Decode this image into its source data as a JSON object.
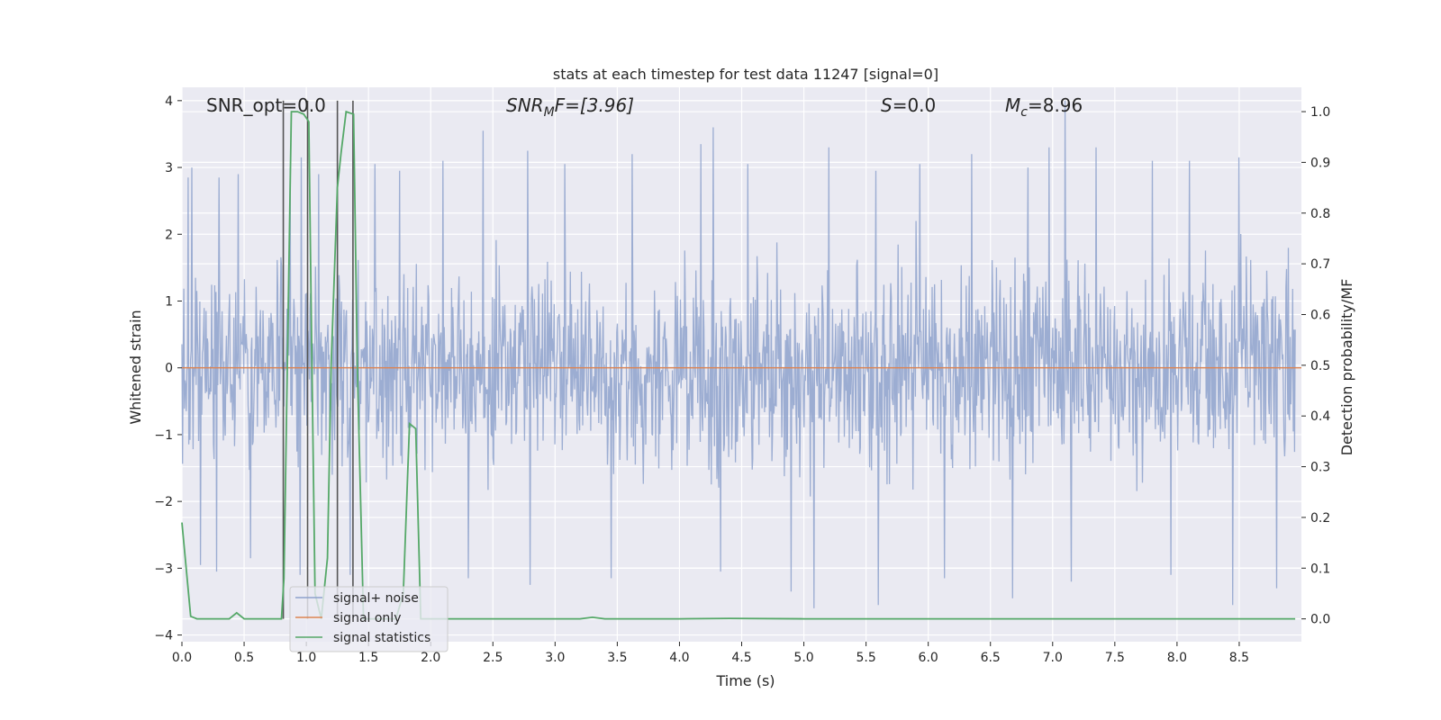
{
  "chart_data": {
    "type": "line",
    "title": "stats at each timestep for test data 11247 [signal=0]",
    "xlabel": "Time (s)",
    "ylabel_left": "Whitened strain",
    "ylabel_right": "Detection probability/MF",
    "xlim": [
      0.0,
      9.0
    ],
    "ylim_left": [
      -4.1,
      4.2
    ],
    "ylim_right": [
      -0.045,
      1.048
    ],
    "xticks": [
      "0.0",
      "0.5",
      "1.0",
      "1.5",
      "2.0",
      "2.5",
      "3.0",
      "3.5",
      "4.0",
      "4.5",
      "5.0",
      "5.5",
      "6.0",
      "6.5",
      "7.0",
      "7.5",
      "8.0",
      "8.5"
    ],
    "yticks_left": [
      4,
      3,
      2,
      1,
      0,
      -1,
      -2,
      -3,
      -4
    ],
    "yticks_left_labels": [
      "4",
      "3",
      "2",
      "1",
      "0",
      "−1",
      "−2",
      "−3",
      "−4"
    ],
    "yticks_right": [
      "1.0",
      "0.9",
      "0.8",
      "0.7",
      "0.6",
      "0.5",
      "0.4",
      "0.3",
      "0.2",
      "0.1",
      "0.0"
    ],
    "grid": true,
    "legend_position": "lower-left",
    "annotations": {
      "snr_opt": "SNR_opt=0.0",
      "snr_mf_base": "SNR",
      "snr_mf_sub": "M",
      "snr_mf_rest": "F=[3.96]",
      "s_var": "S",
      "s_rest": "=0.0",
      "mc_var": "M",
      "mc_sub": "c",
      "mc_rest": "=8.96"
    },
    "vertical_lines_x": [
      0.815,
      1.01,
      1.25,
      1.375
    ],
    "series": [
      {
        "name": "signal+ noise",
        "axis": "left",
        "color": "#8ea2cc",
        "description": "dense noise trace spanning roughly -3.6 to 4.0",
        "envelope_hi": 2.0,
        "envelope_lo": -2.0,
        "spikes": [
          [
            0.05,
            2.85
          ],
          [
            0.08,
            3.0
          ],
          [
            0.3,
            2.85
          ],
          [
            0.45,
            2.9
          ],
          [
            0.87,
            3.0
          ],
          [
            0.96,
            3.15
          ],
          [
            1.1,
            2.9
          ],
          [
            1.55,
            3.05
          ],
          [
            1.75,
            2.95
          ],
          [
            2.1,
            3.1
          ],
          [
            2.42,
            3.55
          ],
          [
            2.78,
            3.25
          ],
          [
            3.08,
            3.05
          ],
          [
            3.62,
            3.2
          ],
          [
            4.17,
            3.35
          ],
          [
            4.27,
            3.6
          ],
          [
            4.55,
            3.05
          ],
          [
            5.2,
            3.3
          ],
          [
            5.58,
            2.95
          ],
          [
            5.93,
            3.05
          ],
          [
            6.35,
            3.2
          ],
          [
            6.8,
            3.0
          ],
          [
            6.97,
            3.3
          ],
          [
            7.1,
            4.0
          ],
          [
            7.35,
            3.3
          ],
          [
            7.8,
            3.1
          ],
          [
            8.1,
            3.1
          ],
          [
            8.5,
            3.15
          ],
          [
            8.8,
            3.0
          ],
          [
            0.15,
            -2.95
          ],
          [
            0.28,
            -3.05
          ],
          [
            0.55,
            -2.85
          ],
          [
            0.95,
            -3.1
          ],
          [
            1.35,
            -3.1
          ],
          [
            2.3,
            -3.15
          ],
          [
            2.8,
            -3.25
          ],
          [
            3.45,
            -3.15
          ],
          [
            4.33,
            -3.05
          ],
          [
            4.9,
            -3.35
          ],
          [
            5.08,
            -3.6
          ],
          [
            5.6,
            -3.55
          ],
          [
            6.13,
            -3.15
          ],
          [
            6.68,
            -3.45
          ],
          [
            7.15,
            -3.2
          ],
          [
            7.95,
            -3.1
          ],
          [
            8.45,
            -3.55
          ],
          [
            8.8,
            -3.3
          ]
        ]
      },
      {
        "name": "signal only",
        "axis": "left",
        "color": "#dd8452",
        "x": [
          0.0,
          9.0
        ],
        "y": [
          0.0,
          0.0
        ]
      },
      {
        "name": "signal statistics",
        "axis": "right",
        "color": "#55a868",
        "x": [
          0.0,
          0.07,
          0.12,
          0.2,
          0.3,
          0.38,
          0.44,
          0.5,
          0.6,
          0.7,
          0.75,
          0.8,
          0.82,
          0.88,
          0.93,
          0.98,
          1.02,
          1.04,
          1.07,
          1.12,
          1.17,
          1.2,
          1.25,
          1.28,
          1.32,
          1.38,
          1.41,
          1.46,
          1.52,
          1.57,
          1.6,
          1.65,
          1.72,
          1.78,
          1.83,
          1.88,
          1.92,
          1.95,
          2.0,
          2.1,
          2.5,
          3.0,
          3.2,
          3.3,
          3.4,
          4.0,
          4.4,
          5.0,
          5.5,
          6.0,
          7.0,
          8.0,
          8.95
        ],
        "y": [
          0.19,
          0.005,
          0.0,
          0.0,
          0.0,
          0.0,
          0.012,
          0.0,
          0.0,
          0.0,
          0.0,
          0.0,
          0.08,
          1.0,
          1.0,
          0.995,
          0.98,
          0.6,
          0.05,
          0.0,
          0.12,
          0.5,
          0.85,
          0.92,
          1.0,
          0.995,
          0.5,
          0.0,
          0.0,
          0.0,
          0.0,
          0.0,
          0.0,
          0.05,
          0.385,
          0.375,
          0.0,
          0.0,
          0.0,
          0.0,
          0.0,
          0.0,
          0.0,
          0.003,
          0.0,
          0.0,
          0.001,
          0.0,
          0.0,
          0.0,
          0.0,
          0.0,
          0.0
        ]
      }
    ],
    "colors": {
      "background": "#eaeaf2",
      "grid": "#ffffff",
      "vline": "#555555"
    }
  }
}
